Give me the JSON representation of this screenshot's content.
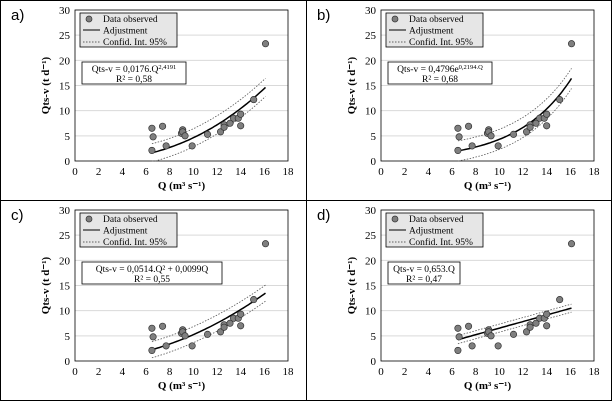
{
  "chart_data": [
    {
      "panel": "a)",
      "type": "scatter",
      "fit": "power",
      "params": [
        0.0176,
        2.4191
      ],
      "ci_halfwidth": 1.8,
      "equation": "Qts-v = 0,0176.Q",
      "equation_sup": "2,4191",
      "r2": "R² = 0,58"
    },
    {
      "panel": "b)",
      "type": "scatter",
      "fit": "exp",
      "params": [
        0.4796,
        0.2194
      ],
      "ci_halfwidth": 2.0,
      "equation": "Qts-v = 0,4796e",
      "equation_sup": "0,2194.Q",
      "r2": "R² = 0,68"
    },
    {
      "panel": "c)",
      "type": "scatter",
      "fit": "quad",
      "params": [
        0.0514,
        0.0099
      ],
      "ci_halfwidth": 1.6,
      "equation": "Qts-v = 0,0514.Q² + 0,0099Q",
      "equation_sup": "",
      "r2": "R² = 0,55"
    },
    {
      "panel": "d)",
      "type": "scatter",
      "fit": "linear",
      "params": [
        0.653
      ],
      "ci_halfwidth": 0.8,
      "equation": "Qts-v = 0,653.Q",
      "equation_sup": "",
      "r2": "R² = 0,47"
    }
  ],
  "shared": {
    "xlabel": "Q (m³ s⁻¹)",
    "ylabel": "Qts-v (t d⁻¹)",
    "xlim": [
      0,
      18
    ],
    "ylim": [
      0,
      30
    ],
    "xticks": [
      "0",
      "2",
      "4",
      "6",
      "8",
      "10",
      "12",
      "14",
      "16",
      "18"
    ],
    "yticks": [
      "0",
      "5",
      "10",
      "15",
      "20",
      "25",
      "30"
    ],
    "legend": [
      "Data observed",
      "Adjustment",
      "Confid. Int. 95%"
    ],
    "legend_position": "top-left",
    "grid": "horizontal",
    "x": [
      6.5,
      6.6,
      6.5,
      7.4,
      7.7,
      9.0,
      9.1,
      9.1,
      9.3,
      9.9,
      11.2,
      12.3,
      12.6,
      12.6,
      13.1,
      13.4,
      13.8,
      14.0,
      14.0,
      15.1,
      16.1
    ],
    "y": [
      6.5,
      4.8,
      2.1,
      6.9,
      3.0,
      5.5,
      6.2,
      5.8,
      5.0,
      3.0,
      5.3,
      5.8,
      7.2,
      6.7,
      7.5,
      8.5,
      8.5,
      7.0,
      9.3,
      12.2,
      23.3
    ],
    "fit_range": [
      6.5,
      16.1
    ],
    "colors": {
      "point": "#7f7f7f",
      "grid": "#d9d9d9",
      "legend_bg": "#e6e6e6"
    }
  }
}
